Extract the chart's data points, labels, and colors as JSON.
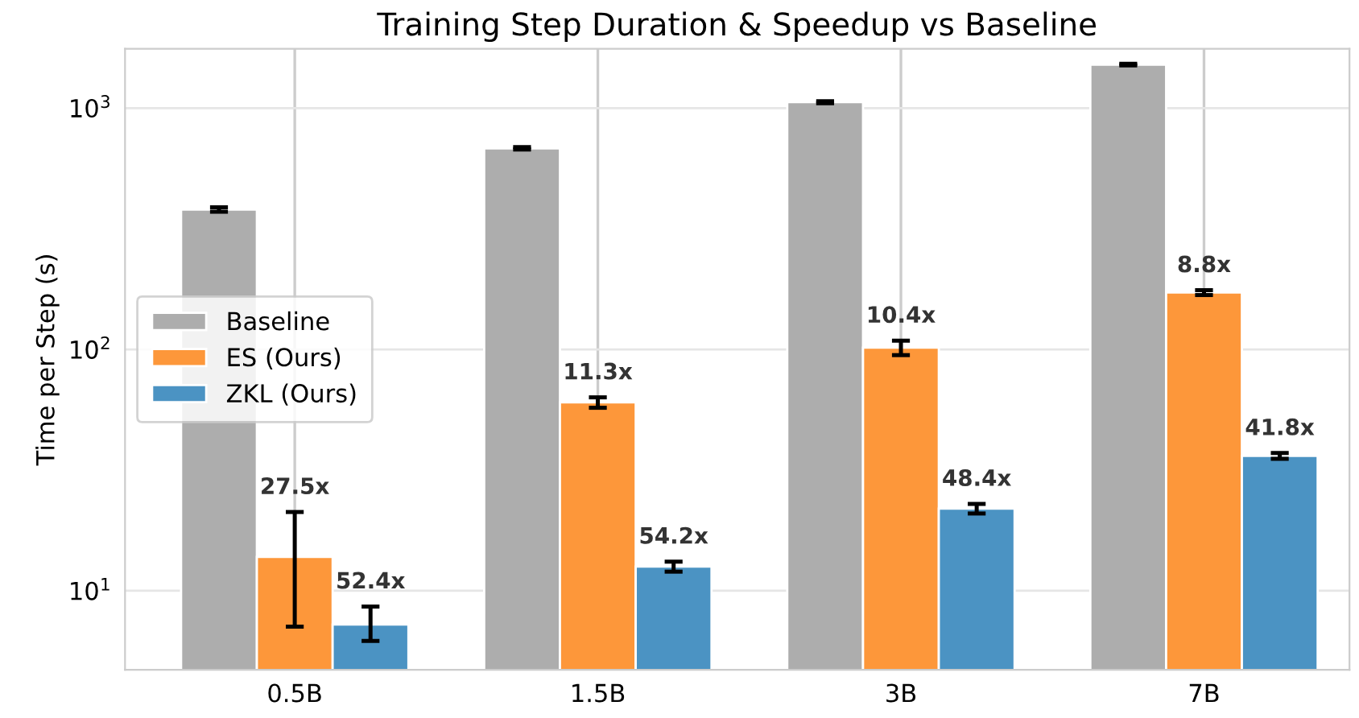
{
  "chart_data": {
    "type": "bar",
    "title": "Training Step Duration & Speedup vs Baseline",
    "ylabel": "Time per Step (s)",
    "categories": [
      "0.5B",
      "1.5B",
      "3B",
      "7B"
    ],
    "series": [
      {
        "name": "Baseline",
        "color": "#adadad",
        "values": [
          380,
          681,
          1058,
          1514
        ],
        "errors": [
          8,
          8,
          10,
          12
        ]
      },
      {
        "name": "ES (Ours)",
        "color": "#fd973a",
        "values": [
          13.8,
          60.3,
          101.7,
          172
        ],
        "errors": [
          [
            7.1,
            21.2
          ],
          3,
          7,
          4
        ]
      },
      {
        "name": "ZKL (Ours)",
        "color": "#4b93c3",
        "values": [
          7.25,
          12.6,
          21.9,
          36.2
        ],
        "errors": [
          [
            6.2,
            8.6
          ],
          0.6,
          1.0,
          1.0
        ]
      }
    ],
    "annotations": [
      {
        "text": "27.5x",
        "x": "0.5B",
        "y": 13.8
      },
      {
        "text": "11.3x",
        "x": "1.5B",
        "y": 60.3
      },
      {
        "text": "10.4x",
        "x": "3B",
        "y": 101.7
      },
      {
        "text": "8.8x",
        "x": "7B",
        "y": 172
      },
      "52.4x",
      "54.2x",
      "48.4x",
      "41.8x"
    ],
    "log": "y",
    "ylim": [
      4.7,
      1760
    ],
    "yticks": [
      {
        "value": 10,
        "label": "10$^{1}$"
      },
      {
        "value": 100,
        "label": "10$^{2}$"
      },
      {
        "value": 1000,
        "label": "10$^{3}$"
      }
    ],
    "grid": true,
    "legend": "center left"
  }
}
